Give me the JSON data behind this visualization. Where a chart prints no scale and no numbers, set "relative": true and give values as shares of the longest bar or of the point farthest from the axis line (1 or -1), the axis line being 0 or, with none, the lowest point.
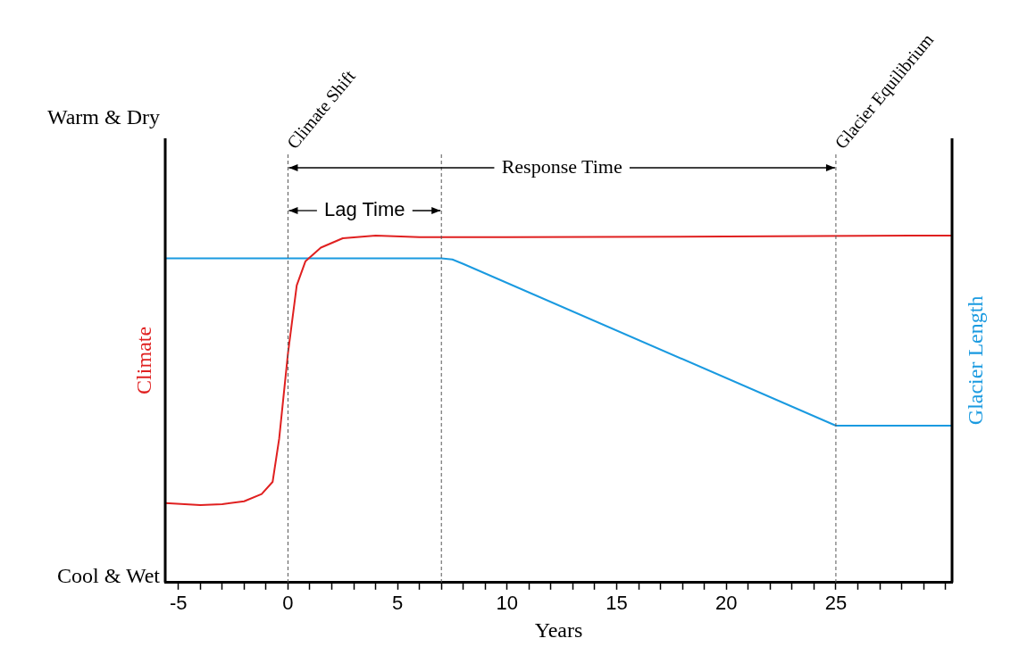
{
  "chart_data": {
    "type": "line",
    "relative": true,
    "xlabel": "Years",
    "xlim": [
      -5.6,
      30.3
    ],
    "xticks": [
      -5,
      {
        "value": -4,
        "label": null
      },
      {
        "value": -3,
        "label": null
      },
      {
        "value": -2,
        "label": null
      },
      {
        "value": -1,
        "label": null
      },
      0,
      {
        "value": 1,
        "label": null
      },
      {
        "value": 2,
        "label": null
      },
      {
        "value": 3,
        "label": null
      },
      {
        "value": 4,
        "label": null
      },
      5,
      {
        "value": 6,
        "label": null
      },
      {
        "value": 7,
        "label": null
      },
      {
        "value": 8,
        "label": null
      },
      {
        "value": 9,
        "label": null
      },
      10,
      {
        "value": 11,
        "label": null
      },
      {
        "value": 12,
        "label": null
      },
      {
        "value": 13,
        "label": null
      },
      {
        "value": 14,
        "label": null
      },
      15,
      {
        "value": 16,
        "label": null
      },
      {
        "value": 17,
        "label": null
      },
      {
        "value": 18,
        "label": null
      },
      {
        "value": 19,
        "label": null
      },
      20,
      {
        "value": 21,
        "label": null
      },
      {
        "value": 22,
        "label": null
      },
      {
        "value": 23,
        "label": null
      },
      {
        "value": 24,
        "label": null
      },
      25,
      {
        "value": 26,
        "label": null
      },
      {
        "value": 27,
        "label": null
      },
      {
        "value": 28,
        "label": null
      },
      {
        "value": 29,
        "label": null
      },
      {
        "value": 30,
        "label": null
      }
    ],
    "series": [
      {
        "name": "Climate",
        "color": "#e02020",
        "x": [
          -5.6,
          -4,
          -3,
          -2,
          -1.2,
          -0.7,
          -0.4,
          0,
          0.4,
          0.8,
          1.5,
          2.5,
          4,
          6,
          10,
          20,
          30.3
        ],
        "values": [
          0.229,
          0.223,
          0.226,
          0.234,
          0.255,
          0.29,
          0.415,
          0.66,
          0.856,
          0.926,
          0.965,
          0.992,
          1,
          0.995,
          0.995,
          0.997,
          1
        ]
      },
      {
        "name": "Glacier Length",
        "color": "#1a9ae0",
        "axis": "y2",
        "x": [
          -5.6,
          7,
          7.5,
          8,
          25,
          30.3
        ],
        "values": [
          0.934,
          0.934,
          0.931,
          0.918,
          0.452,
          0.452
        ]
      }
    ],
    "ref_lines": [
      {
        "axis": "x",
        "value": 0,
        "label": "Climate Shift",
        "color": "#555555",
        "line_style": "dashed"
      },
      {
        "axis": "x",
        "value": 7,
        "color": "#555555",
        "line_style": "dashed"
      },
      {
        "axis": "x",
        "value": 25,
        "label": "Glacier Equilibrium",
        "color": "#555555",
        "line_style": "dashed"
      }
    ],
    "annotations": [
      "Warm & Dry",
      "Cool & Wet",
      "Lag Time",
      "Response Time"
    ],
    "legend": false,
    "grid": false,
    "marker": "none",
    "line_style": "solid"
  }
}
